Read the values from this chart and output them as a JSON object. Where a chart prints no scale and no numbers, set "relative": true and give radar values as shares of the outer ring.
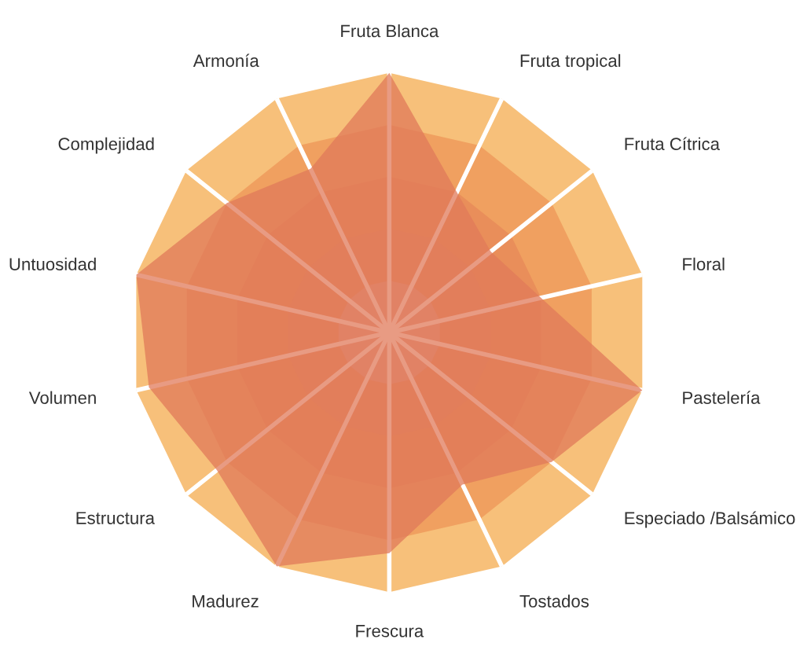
{
  "chart_data": {
    "type": "radar",
    "relative": true,
    "grid": true,
    "categories": [
      "Fruta Blanca",
      "Fruta tropical",
      "Fruta Cítrica",
      "Floral",
      "Pastelería",
      "Especiado /Balsámico",
      "Tostados",
      "Frescura",
      "Madurez",
      "Estructura",
      "Volumen",
      "Untuosidad",
      "Complejidad",
      "Armonía"
    ],
    "series": [
      {
        "color": "#e07a5a",
        "values": [
          1.0,
          0.6,
          0.5,
          0.6,
          1.0,
          0.8,
          0.65,
          0.85,
          1.0,
          0.85,
          0.95,
          1.0,
          0.8,
          0.7
        ]
      }
    ]
  }
}
